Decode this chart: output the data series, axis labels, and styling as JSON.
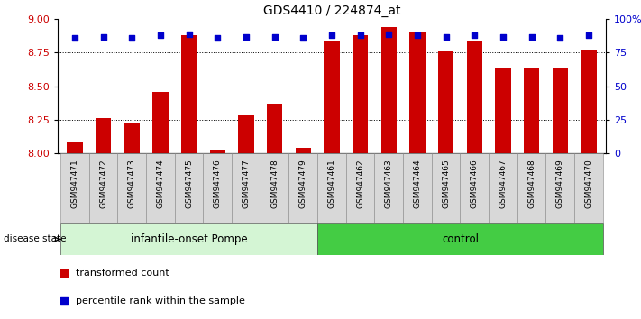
{
  "title": "GDS4410 / 224874_at",
  "samples": [
    "GSM947471",
    "GSM947472",
    "GSM947473",
    "GSM947474",
    "GSM947475",
    "GSM947476",
    "GSM947477",
    "GSM947478",
    "GSM947479",
    "GSM947461",
    "GSM947462",
    "GSM947463",
    "GSM947464",
    "GSM947465",
    "GSM947466",
    "GSM947467",
    "GSM947468",
    "GSM947469",
    "GSM947470"
  ],
  "bar_values": [
    8.08,
    8.26,
    8.22,
    8.46,
    8.88,
    8.02,
    8.28,
    8.37,
    8.04,
    8.84,
    8.88,
    8.94,
    8.91,
    8.76,
    8.84,
    8.64,
    8.64,
    8.64,
    8.77
  ],
  "dot_values": [
    8.86,
    8.87,
    8.86,
    8.88,
    8.89,
    8.86,
    8.87,
    8.87,
    8.86,
    8.88,
    8.88,
    8.89,
    8.88,
    8.87,
    8.88,
    8.87,
    8.87,
    8.86,
    8.88
  ],
  "groups": [
    {
      "label": "infantile-onset Pompe",
      "start": 0,
      "end": 9,
      "color_light": "#d4f5d4",
      "color_dark": "#44cc44"
    },
    {
      "label": "control",
      "start": 9,
      "end": 19,
      "color_light": "#44cc44",
      "color_dark": "#44cc44"
    }
  ],
  "ylim_left": [
    8.0,
    9.0
  ],
  "yticks_left": [
    8.0,
    8.25,
    8.5,
    8.75,
    9.0
  ],
  "ylim_right": [
    0,
    100
  ],
  "yticks_right": [
    0,
    25,
    50,
    75,
    100
  ],
  "bar_color": "#CC0000",
  "dot_color": "#0000CC",
  "bar_width": 0.55,
  "xtick_bg": "#d0d0d0",
  "legend_items": [
    {
      "label": "transformed count",
      "color": "#CC0000"
    },
    {
      "label": "percentile rank within the sample",
      "color": "#0000CC"
    }
  ]
}
